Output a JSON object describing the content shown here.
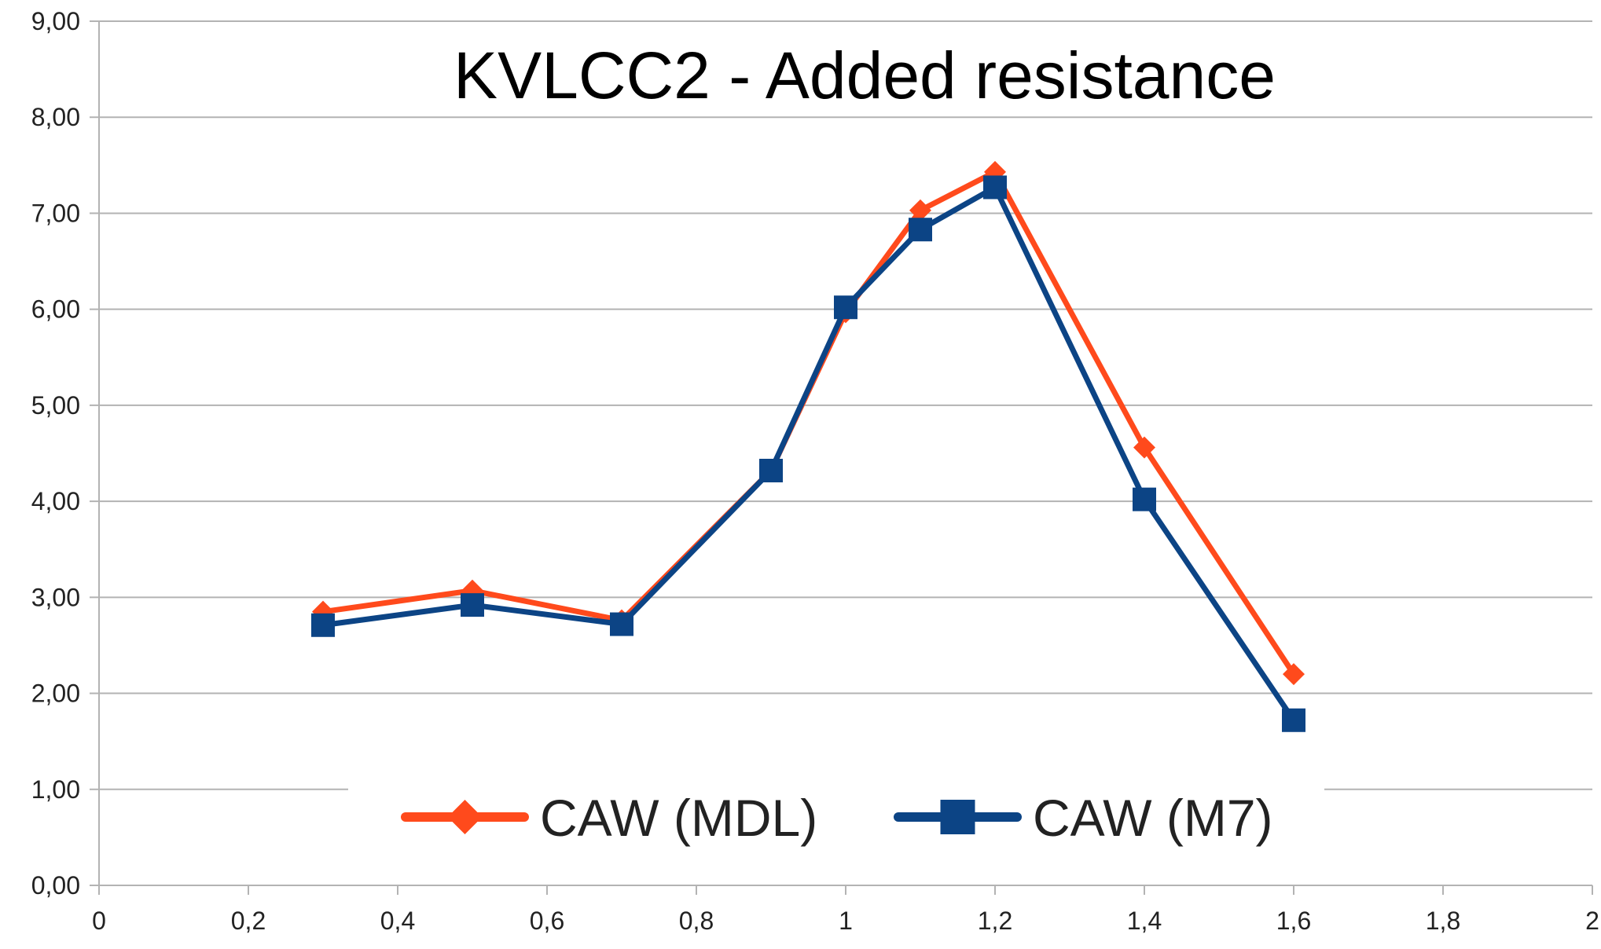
{
  "chart_data": {
    "type": "line",
    "title": "KVLCC2  -  Added resistance",
    "xlabel": "",
    "ylabel": "",
    "xlim": [
      0,
      2
    ],
    "ylim": [
      0,
      9
    ],
    "x_ticks": [
      0,
      0.2,
      0.4,
      0.6,
      0.8,
      1,
      1.2,
      1.4,
      1.6,
      1.8,
      2
    ],
    "x_tick_labels": [
      "0",
      "0,2",
      "0,4",
      "0,6",
      "0,8",
      "1",
      "1,2",
      "1,4",
      "1,6",
      "1,8",
      "2"
    ],
    "y_ticks": [
      0,
      1,
      2,
      3,
      4,
      5,
      6,
      7,
      8,
      9
    ],
    "y_tick_labels": [
      "0,00",
      "1,00",
      "2,00",
      "3,00",
      "4,00",
      "5,00",
      "6,00",
      "7,00",
      "8,00",
      "9,00"
    ],
    "grid": "horizontal",
    "legend_position": "bottom",
    "series": [
      {
        "name": "CAW (MDL)",
        "color": "#ff4a1c",
        "marker": "diamond",
        "x": [
          0.3,
          0.5,
          0.7,
          0.9,
          1.0,
          1.1,
          1.2,
          1.4,
          1.6
        ],
        "y": [
          2.85,
          3.07,
          2.76,
          4.32,
          5.97,
          7.03,
          7.43,
          4.56,
          2.2
        ]
      },
      {
        "name": "CAW (M7)",
        "color": "#0c4485",
        "marker": "square",
        "x": [
          0.3,
          0.5,
          0.7,
          0.9,
          1.0,
          1.1,
          1.2,
          1.4,
          1.6
        ],
        "y": [
          2.71,
          2.92,
          2.72,
          4.32,
          6.02,
          6.83,
          7.27,
          4.02,
          1.72
        ]
      }
    ]
  }
}
